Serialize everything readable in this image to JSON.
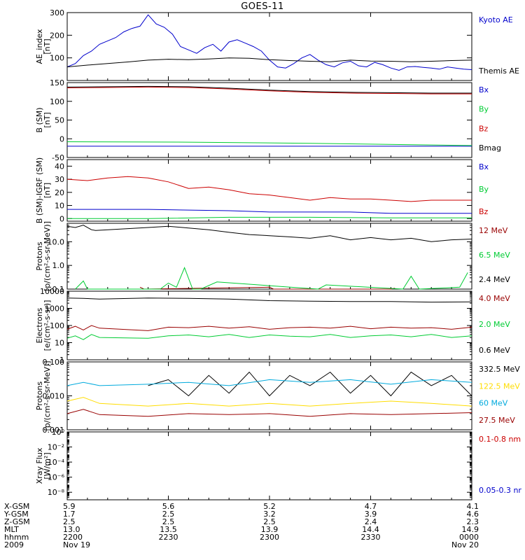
{
  "title": "GOES-11",
  "chart_data": [
    {
      "type": "line",
      "ylabel": [
        "AE_index",
        "[nT]"
      ],
      "ylim": [
        0,
        300
      ],
      "yticks": [
        {
          "v": 100,
          "label": "100"
        },
        {
          "v": 200,
          "label": "200"
        },
        {
          "v": 300,
          "label": "300"
        }
      ],
      "series": [
        {
          "name": "Kyoto AE",
          "color": "#0000cc",
          "x": [
            0,
            0.02,
            0.04,
            0.06,
            0.08,
            0.1,
            0.12,
            0.14,
            0.16,
            0.18,
            0.2,
            0.22,
            0.24,
            0.26,
            0.28,
            0.3,
            0.32,
            0.34,
            0.36,
            0.38,
            0.4,
            0.42,
            0.44,
            0.46,
            0.48,
            0.5,
            0.52,
            0.54,
            0.56,
            0.58,
            0.6,
            0.62,
            0.64,
            0.66,
            0.68,
            0.7,
            0.72,
            0.74,
            0.76,
            0.78,
            0.8,
            0.82,
            0.84,
            0.86,
            0.88,
            0.9,
            0.92,
            0.94,
            0.96,
            0.98,
            1
          ],
          "y": [
            60,
            75,
            110,
            130,
            160,
            175,
            190,
            215,
            230,
            240,
            290,
            250,
            235,
            205,
            150,
            135,
            120,
            145,
            160,
            130,
            170,
            180,
            165,
            150,
            130,
            90,
            60,
            55,
            75,
            100,
            115,
            90,
            70,
            60,
            78,
            85,
            65,
            60,
            80,
            70,
            55,
            45,
            60,
            62,
            58,
            55,
            50,
            60,
            55,
            50,
            48
          ]
        },
        {
          "name": "Themis AE",
          "color": "#000000",
          "x": [
            0,
            0.05,
            0.1,
            0.15,
            0.2,
            0.25,
            0.3,
            0.35,
            0.4,
            0.45,
            0.5,
            0.55,
            0.6,
            0.65,
            0.7,
            0.75,
            0.8,
            0.85,
            0.9,
            0.95,
            1
          ],
          "y": [
            60,
            68,
            75,
            82,
            90,
            94,
            92,
            95,
            100,
            98,
            92,
            88,
            85,
            83,
            90,
            86,
            85,
            83,
            85,
            88,
            90
          ]
        }
      ]
    },
    {
      "type": "line",
      "ylabel": [
        "B (SM)",
        "[nT]"
      ],
      "ylim": [
        -50,
        150
      ],
      "yticks": [
        {
          "v": -50,
          "label": "-50"
        },
        {
          "v": 0,
          "label": "0"
        },
        {
          "v": 50,
          "label": "50"
        },
        {
          "v": 100,
          "label": "100"
        },
        {
          "v": 150,
          "label": "150"
        }
      ],
      "series": [
        {
          "name": "Bx",
          "color": "#0000cc",
          "x": [
            0,
            0.5,
            1
          ],
          "y": [
            -20,
            -20,
            -20
          ]
        },
        {
          "name": "By",
          "color": "#00cc33",
          "x": [
            0,
            0.3,
            0.6,
            1
          ],
          "y": [
            -8,
            -9,
            -12,
            -18
          ]
        },
        {
          "name": "Bz",
          "color": "#cc0000",
          "x": [
            0,
            0.1,
            0.2,
            0.3,
            0.4,
            0.5,
            0.6,
            0.7,
            0.8,
            0.9,
            1
          ],
          "y": [
            136,
            137,
            138,
            137,
            133,
            128,
            124,
            122,
            121,
            120,
            120
          ]
        },
        {
          "name": "Bmag",
          "color": "#000000",
          "x": [
            0,
            0.1,
            0.2,
            0.3,
            0.4,
            0.5,
            0.6,
            0.7,
            0.8,
            0.9,
            1
          ],
          "y": [
            138,
            139,
            140,
            139,
            135,
            130,
            126,
            124,
            123,
            122,
            122
          ]
        }
      ]
    },
    {
      "type": "line",
      "ylabel": [
        "B (SM)-IGRF (SM)",
        "[nT]"
      ],
      "ylim": [
        -2,
        45
      ],
      "yticks": [
        {
          "v": 0,
          "label": "0"
        },
        {
          "v": 10,
          "label": "10"
        },
        {
          "v": 20,
          "label": "20"
        },
        {
          "v": 30,
          "label": "30"
        },
        {
          "v": 40,
          "label": "40"
        }
      ],
      "series": [
        {
          "name": "Bx",
          "color": "#0000cc",
          "x": [
            0,
            0.1,
            0.2,
            0.3,
            0.4,
            0.5,
            0.6,
            0.7,
            0.8,
            0.9,
            1
          ],
          "y": [
            7,
            7,
            7,
            6.5,
            6,
            5,
            5,
            5,
            4,
            4,
            4
          ]
        },
        {
          "name": "By",
          "color": "#00cc33",
          "x": [
            0,
            0.2,
            0.4,
            0.6,
            0.8,
            1
          ],
          "y": [
            0,
            0,
            1,
            1,
            0.5,
            0.5
          ]
        },
        {
          "name": "Bz",
          "color": "#cc0000",
          "x": [
            0,
            0.05,
            0.1,
            0.15,
            0.2,
            0.25,
            0.3,
            0.35,
            0.4,
            0.45,
            0.5,
            0.55,
            0.6,
            0.65,
            0.7,
            0.75,
            0.8,
            0.85,
            0.9,
            0.95,
            1
          ],
          "y": [
            30,
            29,
            31,
            32,
            31,
            28,
            23,
            24,
            22,
            19,
            18,
            16,
            14,
            16,
            15,
            15,
            14,
            13,
            14,
            14,
            14
          ]
        }
      ]
    },
    {
      "type": "line",
      "ylog": true,
      "ylabel": [
        "Protons",
        "[p/(cm²-s-sr-MeV)]"
      ],
      "ylim": [
        0.1,
        60
      ],
      "yticks": [
        {
          "v": 0.1,
          "label": "0.1"
        },
        {
          "v": 1,
          "label": "1.0"
        },
        {
          "v": 10,
          "label": "10.0"
        }
      ],
      "series": [
        {
          "name": "12 MeV",
          "color": "#990000",
          "x": [
            0.18,
            0.19,
            0.5,
            0.51,
            0.8,
            0.81
          ],
          "y": [
            0.12,
            0.1,
            0.12,
            0.1,
            0.1,
            0.11
          ]
        },
        {
          "name": "6.5 MeV",
          "color": "#00cc33",
          "x": [
            0.02,
            0.04,
            0.05,
            0.23,
            0.25,
            0.27,
            0.29,
            0.31,
            0.33,
            0.37,
            0.62,
            0.64,
            0.83,
            0.85,
            0.87,
            0.97,
            0.99
          ],
          "y": [
            0.1,
            0.22,
            0.1,
            0.1,
            0.18,
            0.12,
            0.8,
            0.1,
            0.1,
            0.2,
            0.1,
            0.15,
            0.1,
            0.35,
            0.1,
            0.12,
            0.5
          ]
        },
        {
          "name": "2.4 MeV",
          "color": "#000000",
          "x": [
            0,
            0.02,
            0.04,
            0.06,
            0.07,
            0.2,
            0.25,
            0.3,
            0.35,
            0.4,
            0.45,
            0.5,
            0.55,
            0.6,
            0.65,
            0.7,
            0.75,
            0.8,
            0.85,
            0.9,
            0.95,
            1
          ],
          "y": [
            45,
            40,
            50,
            32,
            30,
            40,
            45,
            38,
            32,
            25,
            20,
            18,
            16,
            14,
            18,
            12,
            15,
            12,
            14,
            10,
            12,
            13
          ]
        }
      ]
    },
    {
      "type": "line",
      "ylog": true,
      "ylabel": [
        "Electrons",
        "[e/(cm²-s-sr)]"
      ],
      "ylim": [
        1,
        10000
      ],
      "yticks": [
        {
          "v": 1,
          "label": "1"
        },
        {
          "v": 10,
          "label": "10"
        },
        {
          "v": 100,
          "label": "100"
        },
        {
          "v": 1000,
          "label": "1000"
        },
        {
          "v": 10000,
          "label": "10000"
        }
      ],
      "series": [
        {
          "name": "4.0 MeV",
          "color": "#990000",
          "x": [
            0,
            0.02,
            0.04,
            0.06,
            0.08,
            0.2,
            0.25,
            0.3,
            0.35,
            0.4,
            0.45,
            0.5,
            0.55,
            0.6,
            0.65,
            0.7,
            0.75,
            0.8,
            0.85,
            0.9,
            0.95,
            1
          ],
          "y": [
            60,
            90,
            55,
            100,
            70,
            50,
            80,
            75,
            90,
            70,
            85,
            60,
            75,
            80,
            70,
            90,
            65,
            80,
            70,
            75,
            60,
            80
          ]
        },
        {
          "name": "2.0 MeV",
          "color": "#00cc33",
          "x": [
            0,
            0.02,
            0.04,
            0.06,
            0.08,
            0.2,
            0.25,
            0.3,
            0.35,
            0.4,
            0.45,
            0.5,
            0.55,
            0.6,
            0.65,
            0.7,
            0.75,
            0.8,
            0.85,
            0.9,
            0.95,
            1
          ],
          "y": [
            18,
            25,
            15,
            30,
            20,
            18,
            25,
            28,
            22,
            30,
            20,
            28,
            24,
            22,
            30,
            20,
            25,
            28,
            22,
            30,
            20,
            25
          ]
        },
        {
          "name": "0.6 MeV",
          "color": "#000000",
          "x": [
            0,
            0.04,
            0.08,
            0.2,
            0.3,
            0.4,
            0.5,
            0.6,
            0.7,
            0.8,
            0.9,
            1
          ],
          "y": [
            4000,
            3800,
            3500,
            4000,
            3800,
            3500,
            2800,
            2600,
            2500,
            2500,
            2300,
            2400
          ]
        }
      ]
    },
    {
      "type": "line",
      "ylog": true,
      "ylabel": [
        "Protons",
        "[p/(cm²-s-sr-MeV)]"
      ],
      "ylim": [
        0.001,
        0.1
      ],
      "yticks": [
        {
          "v": 0.001,
          "label": "0.001"
        },
        {
          "v": 0.01,
          "label": "0.010"
        },
        {
          "v": 0.1,
          "label": "0.100"
        }
      ],
      "series": [
        {
          "name": "332.5 MeV",
          "color": "#000000",
          "x": [
            0.2,
            0.25,
            0.3,
            0.35,
            0.4,
            0.45,
            0.5,
            0.55,
            0.6,
            0.65,
            0.7,
            0.75,
            0.8,
            0.85,
            0.9,
            0.95,
            1
          ],
          "y": [
            0.02,
            0.03,
            0.01,
            0.04,
            0.012,
            0.05,
            0.01,
            0.04,
            0.02,
            0.05,
            0.012,
            0.04,
            0.01,
            0.05,
            0.02,
            0.04,
            0.01
          ]
        },
        {
          "name": "122.5 MeV",
          "color": "#ffdd00",
          "x": [
            0,
            0.04,
            0.08,
            0.2,
            0.3,
            0.4,
            0.5,
            0.6,
            0.7,
            0.8,
            0.9,
            1
          ],
          "y": [
            0.007,
            0.009,
            0.006,
            0.005,
            0.006,
            0.005,
            0.006,
            0.005,
            0.006,
            0.007,
            0.006,
            0.005
          ]
        },
        {
          "name": "60 MeV",
          "color": "#00aadd",
          "x": [
            0,
            0.04,
            0.08,
            0.2,
            0.3,
            0.4,
            0.5,
            0.6,
            0.7,
            0.8,
            0.9,
            1
          ],
          "y": [
            0.02,
            0.025,
            0.02,
            0.022,
            0.025,
            0.02,
            0.03,
            0.025,
            0.03,
            0.022,
            0.03,
            0.025
          ]
        },
        {
          "name": "27.5 MeV",
          "color": "#990000",
          "x": [
            0,
            0.04,
            0.08,
            0.2,
            0.3,
            0.4,
            0.5,
            0.6,
            0.7,
            0.8,
            0.9,
            1
          ],
          "y": [
            0.003,
            0.004,
            0.0028,
            0.0025,
            0.003,
            0.0028,
            0.003,
            0.0025,
            0.003,
            0.0028,
            0.003,
            0.0032
          ]
        }
      ]
    },
    {
      "type": "line",
      "ylog": true,
      "ylabel": [
        "Xray Flux",
        "[W/m²]"
      ],
      "ylim": [
        1e-09,
        1
      ],
      "yticks": [
        {
          "v": 1,
          "label": "10⁰"
        },
        {
          "v": 0.01,
          "label": "10⁻²"
        },
        {
          "v": 0.0001,
          "label": "10⁻⁴"
        },
        {
          "v": 1e-06,
          "label": "10⁻⁶"
        },
        {
          "v": 1e-08,
          "label": "10⁻⁸"
        }
      ],
      "series": [
        {
          "name": "0.1-0.8 nm",
          "color": "#cc0000",
          "x": [],
          "y": []
        },
        {
          "name": "0.05-0.3 nr",
          "color": "#0000cc",
          "x": [],
          "y": []
        }
      ]
    }
  ],
  "xaxis": {
    "row_labels": [
      "X-GSM",
      "Y-GSM",
      "Z-GSM",
      "MLT",
      "hhmm",
      "2009"
    ],
    "columns": [
      {
        "pos": 0,
        "values": [
          "5.9",
          "1.7",
          "2.5",
          "13.0",
          "2200",
          "Nov 19"
        ]
      },
      {
        "pos": 0.25,
        "values": [
          "5.6",
          "2.5",
          "2.5",
          "13.5",
          "2230",
          ""
        ]
      },
      {
        "pos": 0.5,
        "values": [
          "5.2",
          "3.2",
          "2.5",
          "13.9",
          "2300",
          ""
        ]
      },
      {
        "pos": 0.75,
        "values": [
          "4.7",
          "3.9",
          "2.4",
          "14.4",
          "2330",
          ""
        ]
      },
      {
        "pos": 1,
        "values": [
          "4.1",
          "4.6",
          "2.3",
          "14.9",
          "0000",
          "Nov 20"
        ]
      }
    ]
  }
}
